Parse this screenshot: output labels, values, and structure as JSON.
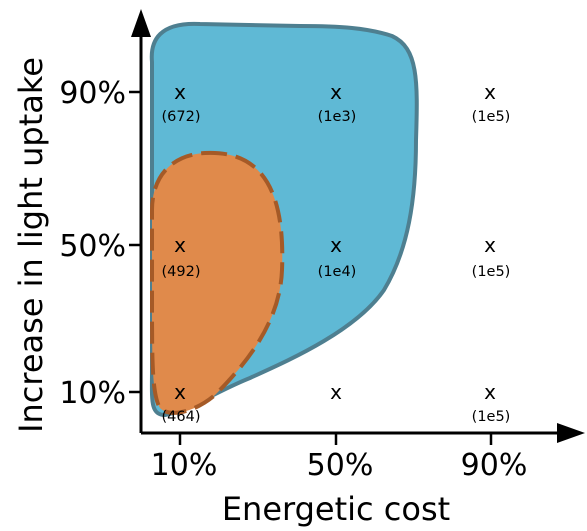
{
  "colors": {
    "outer_region_fill": "#5fb9d5",
    "outer_region_stroke": "#4e7f90",
    "inner_region_fill": "#e08a4b",
    "inner_region_stroke": "#a55a27",
    "axis": "#000000",
    "background": "#ffffff"
  },
  "axes": {
    "x_title": "Energetic cost",
    "y_title": "Increase in light uptake",
    "x_ticks": [
      "10%",
      "50%",
      "90%"
    ],
    "y_ticks": [
      "10%",
      "50%",
      "90%"
    ]
  },
  "grid_points": [
    {
      "id": "c10-u10",
      "marker": "x",
      "label": "(464)"
    },
    {
      "id": "c10-u50",
      "marker": "x",
      "label": "(492)"
    },
    {
      "id": "c10-u90",
      "marker": "x",
      "label": "(672)"
    },
    {
      "id": "c50-u10",
      "marker": "x",
      "label": ""
    },
    {
      "id": "c50-u50",
      "marker": "x",
      "label": "(1e4)"
    },
    {
      "id": "c50-u90",
      "marker": "x",
      "label": "(1e3)"
    },
    {
      "id": "c90-u10",
      "marker": "x",
      "label": "(1e5)"
    },
    {
      "id": "c90-u50",
      "marker": "x",
      "label": "(1e5)"
    },
    {
      "id": "c90-u90",
      "marker": "x",
      "label": "(1e5)"
    }
  ]
}
